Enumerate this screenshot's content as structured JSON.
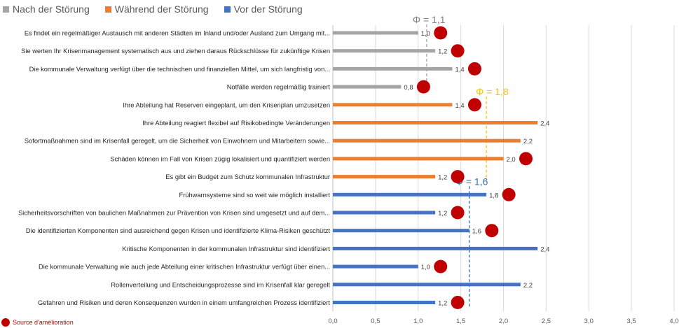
{
  "legend": {
    "items": [
      {
        "label": "Nach der Störung",
        "color": "#a5a5a5"
      },
      {
        "label": "Während der Störung",
        "color": "#ed7d31"
      },
      {
        "label": "Vor der Störung",
        "color": "#4472c4"
      }
    ]
  },
  "source_note": "Source d'amélioration",
  "chart_data": {
    "type": "bar",
    "orientation": "horizontal",
    "xlim": [
      0,
      4
    ],
    "xticks": [
      "0,0",
      "0,5",
      "1,0",
      "1,5",
      "2,0",
      "2,5",
      "3,0",
      "3,5",
      "4,0"
    ],
    "grid": true,
    "colors": {
      "Nach der Störung": "#a5a5a5",
      "Während der Störung": "#ed7d31",
      "Vor der Störung": "#4472c4",
      "marker": "#c00000"
    },
    "bars": [
      {
        "label": "Es findet ein regelmäßiger Austausch mit anderen Städten im Inland und/oder Ausland zum Umgang mit...",
        "value": 1.0,
        "value_label": "1,0",
        "group": "Nach der Störung",
        "improvement": true
      },
      {
        "label": "Sie werten Ihr Krisenmanagement systematisch aus und ziehen daraus Rückschlüsse für zukünftige Krisen",
        "value": 1.2,
        "value_label": "1,2",
        "group": "Nach der Störung",
        "improvement": true
      },
      {
        "label": "Die kommunale Verwaltung verfügt über die technischen und finanziellen Mittel, um sich langfristig von...",
        "value": 1.4,
        "value_label": "1,4",
        "group": "Nach der Störung",
        "improvement": true
      },
      {
        "label": "Notfälle werden regelmäßig trainiert",
        "value": 0.8,
        "value_label": "0,8",
        "group": "Nach der Störung",
        "improvement": true
      },
      {
        "label": "Ihre Abteilung hat Reserven eingeplant, um den Krisenplan umzusetzen",
        "value": 1.4,
        "value_label": "1,4",
        "group": "Während der Störung",
        "improvement": true
      },
      {
        "label": "Ihre Abteilung reagiert flexibel auf Risikobedingte Veränderungen",
        "value": 2.4,
        "value_label": "2,4",
        "group": "Während der Störung",
        "improvement": false
      },
      {
        "label": "Sofortmaßnahmen sind im Krisenfall geregelt, um die Sicherheit von Einwohnern und Mitarbeitern sowie...",
        "value": 2.2,
        "value_label": "2,2",
        "group": "Während der Störung",
        "improvement": false
      },
      {
        "label": "Schäden können im Fall von Krisen zügig lokalisiert und quantifiziert werden",
        "value": 2.0,
        "value_label": "2,0",
        "group": "Während der Störung",
        "improvement": true
      },
      {
        "label": "Es gibt ein Budget zum Schutz kommunalen Infrastruktur",
        "value": 1.2,
        "value_label": "1,2",
        "group": "Während der Störung",
        "improvement": true
      },
      {
        "label": "Frühwarnsysteme sind so weit wie möglich installiert",
        "value": 1.8,
        "value_label": "1,8",
        "group": "Vor der Störung",
        "improvement": true
      },
      {
        "label": "Sicherheitsvorschriften von baulichen Maßnahmen zur Prävention von Krisen sind umgesetzt und auf dem...",
        "value": 1.2,
        "value_label": "1,2",
        "group": "Vor der Störung",
        "improvement": true
      },
      {
        "label": "Die identifizierten Komponenten sind ausreichend gegen Krisen und identifizierte Klima-Risiken geschützt",
        "value": 1.6,
        "value_label": "1,6",
        "group": "Vor der Störung",
        "improvement": true
      },
      {
        "label": "Kritische Komponenten in der kommunalen Infrastruktur sind identifiziert",
        "value": 2.4,
        "value_label": "2,4",
        "group": "Vor der Störung",
        "improvement": false
      },
      {
        "label": "Die kommunale Verwaltung wie auch jede Abteilung einer kritischen Infrastruktur verfügt über einen...",
        "value": 1.0,
        "value_label": "1,0",
        "group": "Vor der Störung",
        "improvement": true
      },
      {
        "label": "Rollenverteilung und Entscheidungsprozesse sind im Krisenfall klar geregelt",
        "value": 2.2,
        "value_label": "2,2",
        "group": "Vor der Störung",
        "improvement": false
      },
      {
        "label": "Gefahren und Risiken und deren Konsequenzen wurden in einem umfangreichen Prozess identifiziert",
        "value": 1.2,
        "value_label": "1,2",
        "group": "Vor der Störung",
        "improvement": true
      }
    ],
    "averages": [
      {
        "group": "Nach der Störung",
        "value": 1.1,
        "label": "Φ = 1,1",
        "color": "#a5a5a5",
        "label_color": "#7f7f7f"
      },
      {
        "group": "Während der Störung",
        "value": 1.8,
        "label": "Φ = 1,8",
        "color": "#ffc000",
        "label_color": "#ffc000"
      },
      {
        "group": "Vor der Störung",
        "value": 1.6,
        "label": "Φ = 1,6",
        "color": "#2e75b6",
        "label_color": "#2e75b6"
      }
    ]
  }
}
